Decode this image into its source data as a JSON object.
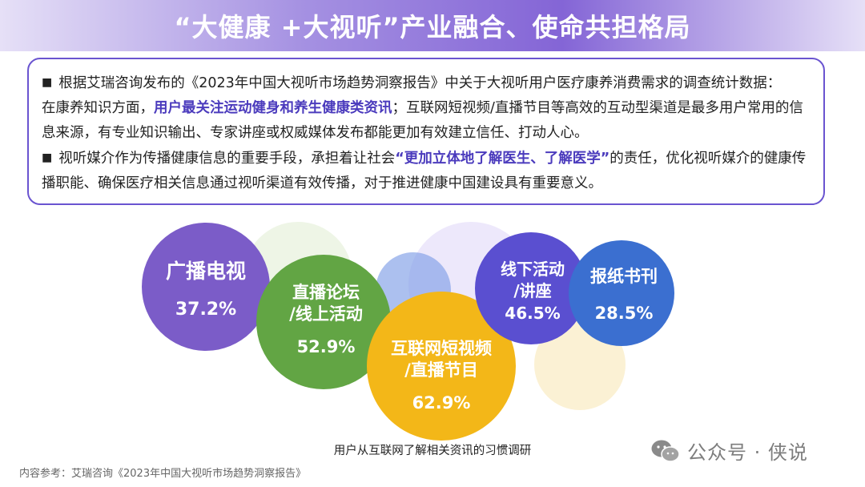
{
  "header": {
    "title": "“大健康 +大视听”产业融合、使命共担格局"
  },
  "paragraphs": {
    "p1_pre": "根据艾瑞咨询发布的《2023年中国大视听市场趋势洞察报告》中关于大视听用户医疗康养消费需求的调查统计数据：",
    "p1_mid": "在康养知识方面，",
    "p1_highlight": "用户最关注运动健身和养生健康类资讯",
    "p1_post": "；互联网短视频/直播节目等高效的互动型渠道是最多用户常用的信息来源，有专业知识输出、专家讲座或权威媒体发布都能更加有效建立信任、打动人心。",
    "p2_pre": "视听媒介作为传播健康信息的重要手段，承担着让社会",
    "p2_highlight": "“更加立体地了解医生、了解医学”",
    "p2_post": "的责任，优化视听媒介的健康传播职能、确保医疗相关信息通过视听渠道有效传播，对于推进健康中国建设具有重要意义。"
  },
  "bubbles": [
    {
      "lines": [
        "广播电视"
      ],
      "value": "37.2%",
      "color": "#7b5cc8"
    },
    {
      "lines": [
        "直播论坛",
        "/线上活动"
      ],
      "value": "52.9%",
      "color": "#62a544"
    },
    {
      "lines": [
        "互联网短视频",
        "/直播节目"
      ],
      "value": "62.9%",
      "color": "#f3b718"
    },
    {
      "lines": [
        "线下活动",
        "/讲座"
      ],
      "value": "46.5%",
      "color": "#5a4fd0"
    },
    {
      "lines": [
        "报纸书刊"
      ],
      "value": "28.5%",
      "color": "#3b6fd0"
    }
  ],
  "caption": "用户从互联网了解相关资讯的习惯调研",
  "source": "内容参考：艾瑞咨询《2023年中国大视听市场趋势洞察报告》",
  "watermark": "公众号 · 侠说"
}
